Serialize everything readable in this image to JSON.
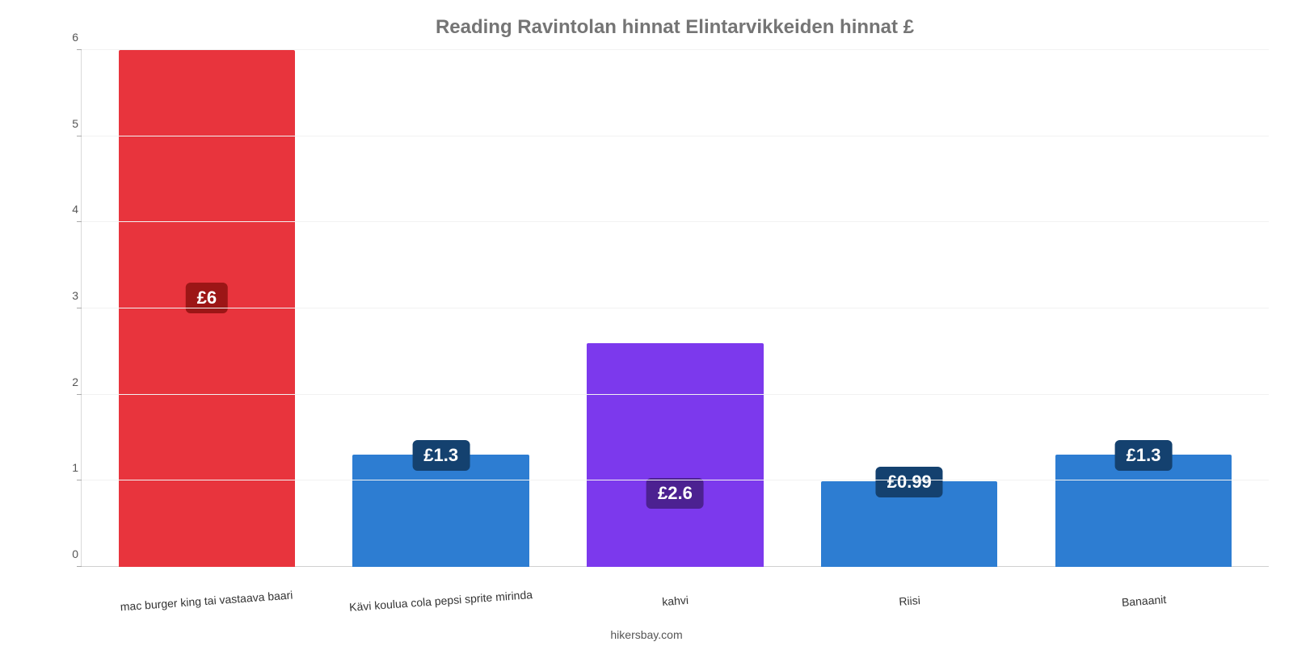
{
  "chart": {
    "type": "bar",
    "title": "Reading Ravintolan hinnat Elintarvikkeiden hinnat £",
    "title_color": "#757575",
    "title_fontsize": 24,
    "attribution": "hikersbay.com",
    "background_color": "#ffffff",
    "grid_color": "#f2f2f2",
    "axis_color": "#d0d0d0",
    "ylim_min": 0,
    "ylim_max": 6,
    "ytick_step": 1,
    "yticks": [
      0,
      1,
      2,
      3,
      4,
      5,
      6
    ],
    "label_fontsize": 14,
    "value_fontsize": 22,
    "bar_width_pct": 78,
    "bars": [
      {
        "category": "mac burger king tai vastaava baari",
        "value": 6.0,
        "display": "£6",
        "bar_color": "#e8343d",
        "badge_color": "#9c1616"
      },
      {
        "category": "Kävi koulua cola pepsi sprite mirinda",
        "value": 1.3,
        "display": "£1.3",
        "bar_color": "#2d7dd2",
        "badge_color": "#14416f"
      },
      {
        "category": "kahvi",
        "value": 2.6,
        "display": "£2.6",
        "bar_color": "#7c39ed",
        "badge_color": "#4c2191"
      },
      {
        "category": "Riisi",
        "value": 0.99,
        "display": "£0.99",
        "bar_color": "#2d7dd2",
        "badge_color": "#14416f"
      },
      {
        "category": "Banaanit",
        "value": 1.3,
        "display": "£1.3",
        "bar_color": "#2d7dd2",
        "badge_color": "#14416f"
      }
    ]
  }
}
